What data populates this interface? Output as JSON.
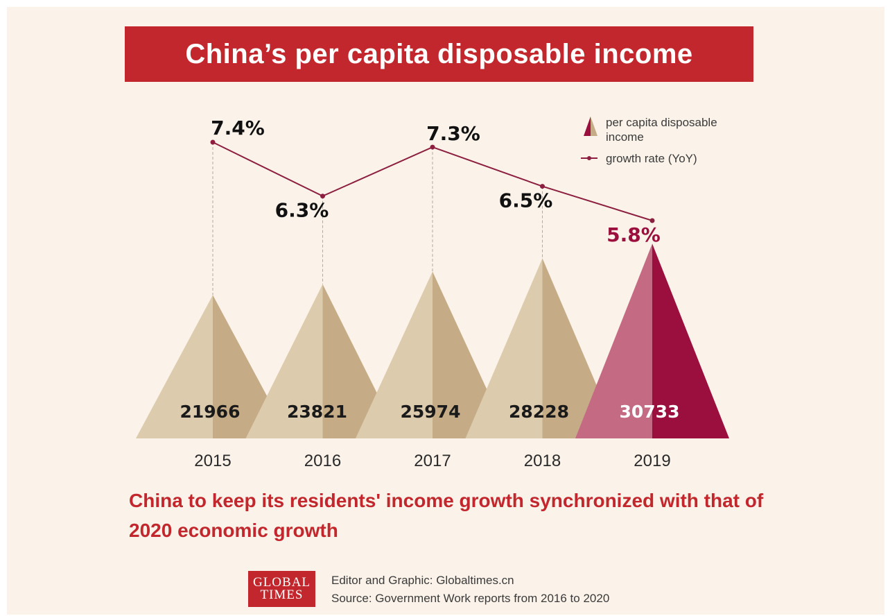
{
  "title": "China’s per capita disposable income",
  "subtitle": "China to keep its residents' income growth synchronized with that of 2020 economic growth",
  "credits": {
    "editor": "Editor and Graphic: Globaltimes.cn",
    "source": "Source: Government Work reports from 2016 to 2020"
  },
  "logo": {
    "line1": "GLOBAL",
    "line2": "TIMES"
  },
  "legend": {
    "income_label_line1": "per capita disposable",
    "income_label_line2": "income",
    "growth_label": "growth rate (YoY)"
  },
  "colors": {
    "background": "#fbf3e9",
    "accent": "#c1272d",
    "triangle_light": "#dccbad",
    "triangle_dark": "#c5ac87",
    "highlight_light": "#c46a82",
    "highlight_dark": "#9b0f3e",
    "line": "#8c1f3f"
  },
  "chart_data": {
    "type": "bar",
    "categories": [
      "2015",
      "2016",
      "2017",
      "2018",
      "2019"
    ],
    "series": [
      {
        "name": "per capita disposable income",
        "values": [
          21966,
          23821,
          25974,
          28228,
          30733
        ],
        "labels": [
          "21966",
          "23821",
          "25974",
          "28228",
          "30733"
        ]
      },
      {
        "name": "growth rate (YoY)",
        "values": [
          7.4,
          6.3,
          7.3,
          6.5,
          5.8
        ],
        "labels": [
          "7.4%",
          "6.3%",
          "7.3%",
          "6.5%",
          "5.8%"
        ]
      }
    ],
    "highlight_category": "2019",
    "legend_position": "top-right",
    "grid": false
  }
}
